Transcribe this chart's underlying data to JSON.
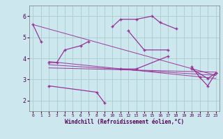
{
  "xlabel": "Windchill (Refroidissement éolien,°C)",
  "background_color": "#cce8ee",
  "grid_color": "#aacccc",
  "line_color": "#993399",
  "xlim": [
    -0.5,
    23.5
  ],
  "ylim": [
    1.5,
    6.5
  ],
  "yticks": [
    2,
    3,
    4,
    5,
    6
  ],
  "xticks": [
    0,
    1,
    2,
    3,
    4,
    5,
    6,
    7,
    8,
    9,
    10,
    11,
    12,
    13,
    14,
    15,
    16,
    17,
    18,
    19,
    20,
    21,
    22,
    23
  ],
  "series": [
    {
      "x": [
        0,
        1
      ],
      "y": [
        5.6,
        4.8
      ]
    },
    {
      "x": [
        2,
        3,
        4,
        6,
        7
      ],
      "y": [
        3.8,
        3.8,
        4.4,
        4.6,
        4.8
      ]
    },
    {
      "x": [
        2,
        8,
        9
      ],
      "y": [
        2.7,
        2.4,
        1.9
      ]
    },
    {
      "x": [
        10,
        11,
        13,
        15,
        16,
        18
      ],
      "y": [
        5.5,
        5.85,
        5.85,
        6.0,
        5.7,
        5.4
      ]
    },
    {
      "x": [
        12,
        14,
        17
      ],
      "y": [
        5.3,
        4.4,
        4.4
      ]
    },
    {
      "x": [
        11,
        13,
        17
      ],
      "y": [
        3.5,
        3.5,
        4.1
      ]
    },
    {
      "x": [
        20,
        21,
        22,
        23
      ],
      "y": [
        3.6,
        3.1,
        2.7,
        3.3
      ]
    },
    {
      "x": [
        20,
        22,
        23
      ],
      "y": [
        3.5,
        3.05,
        3.3
      ]
    }
  ],
  "trend_lines": [
    {
      "x": [
        0,
        23
      ],
      "y": [
        5.6,
        3.2
      ]
    },
    {
      "x": [
        2,
        23
      ],
      "y": [
        3.85,
        3.05
      ]
    },
    {
      "x": [
        2,
        23
      ],
      "y": [
        3.7,
        3.2
      ]
    },
    {
      "x": [
        2,
        23
      ],
      "y": [
        3.55,
        3.35
      ]
    }
  ]
}
